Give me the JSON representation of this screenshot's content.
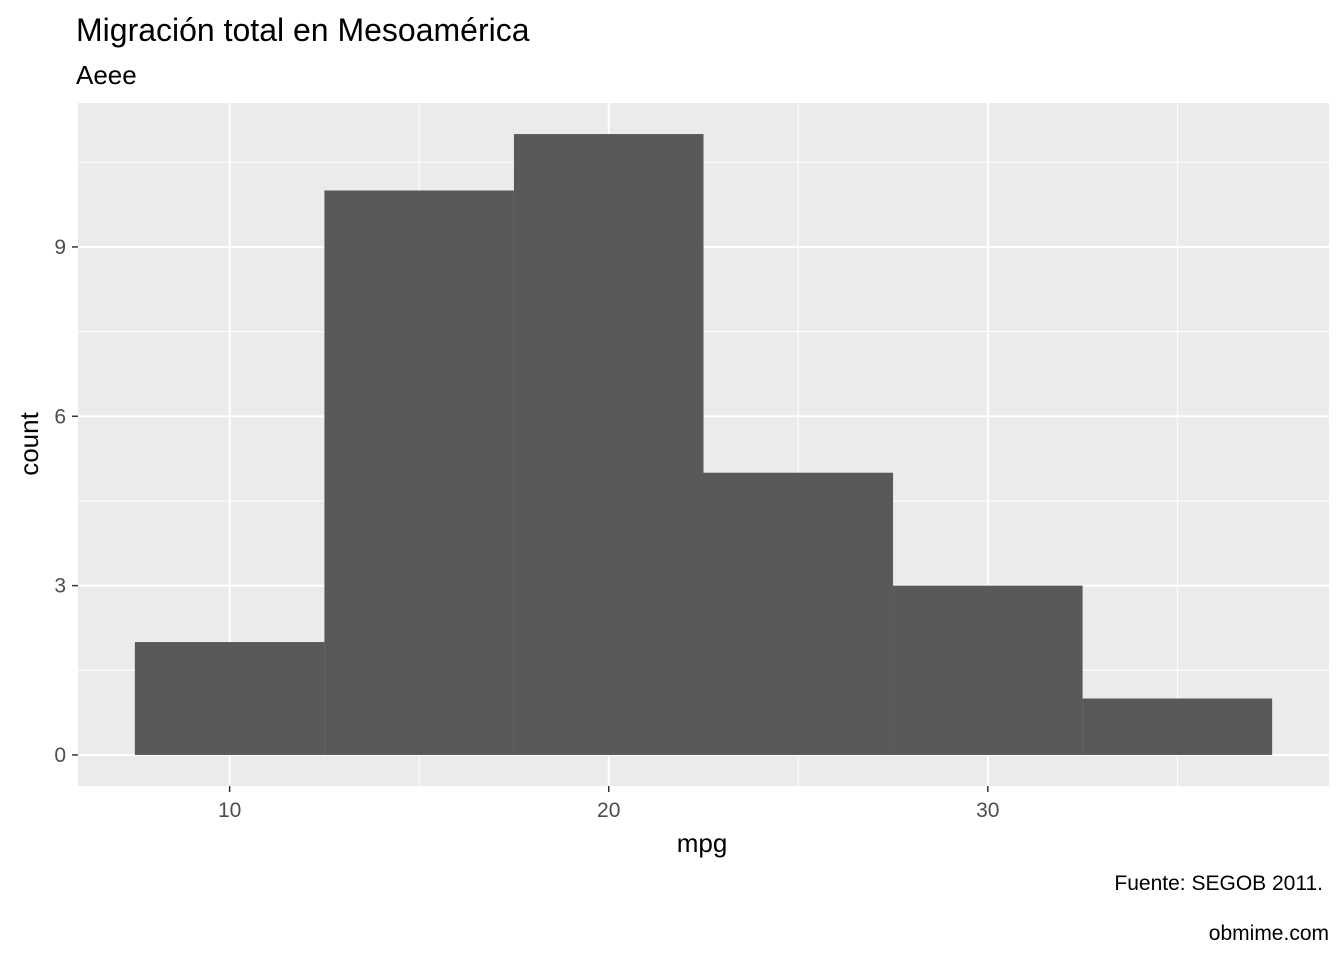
{
  "chart_data": {
    "type": "bar",
    "title": "Migración total en Mesoamérica",
    "subtitle": "Aeee",
    "xlabel": "mpg",
    "ylabel": "count",
    "caption": "Fuente: SEGOB 2011.",
    "credit": "obmime.com",
    "bins": [
      {
        "x_start": 7.5,
        "x_end": 12.5,
        "count": 2
      },
      {
        "x_start": 12.5,
        "x_end": 17.5,
        "count": 10
      },
      {
        "x_start": 17.5,
        "x_end": 22.5,
        "count": 11
      },
      {
        "x_start": 22.5,
        "x_end": 27.5,
        "count": 5
      },
      {
        "x_start": 27.5,
        "x_end": 32.5,
        "count": 3
      },
      {
        "x_start": 32.5,
        "x_end": 37.5,
        "count": 1
      }
    ],
    "xlim": [
      6.0,
      39.0
    ],
    "ylim": [
      -0.55,
      11.55
    ],
    "x_ticks": [
      10,
      20,
      30
    ],
    "x_tick_labels": [
      "10",
      "20",
      "30"
    ],
    "y_ticks": [
      0,
      3,
      6,
      9
    ],
    "y_tick_labels": [
      "0",
      "3",
      "6",
      "9"
    ],
    "grid": true,
    "colors": {
      "bar_fill": "#595959",
      "panel_background": "#ebebeb",
      "grid_line": "#ffffff"
    }
  }
}
